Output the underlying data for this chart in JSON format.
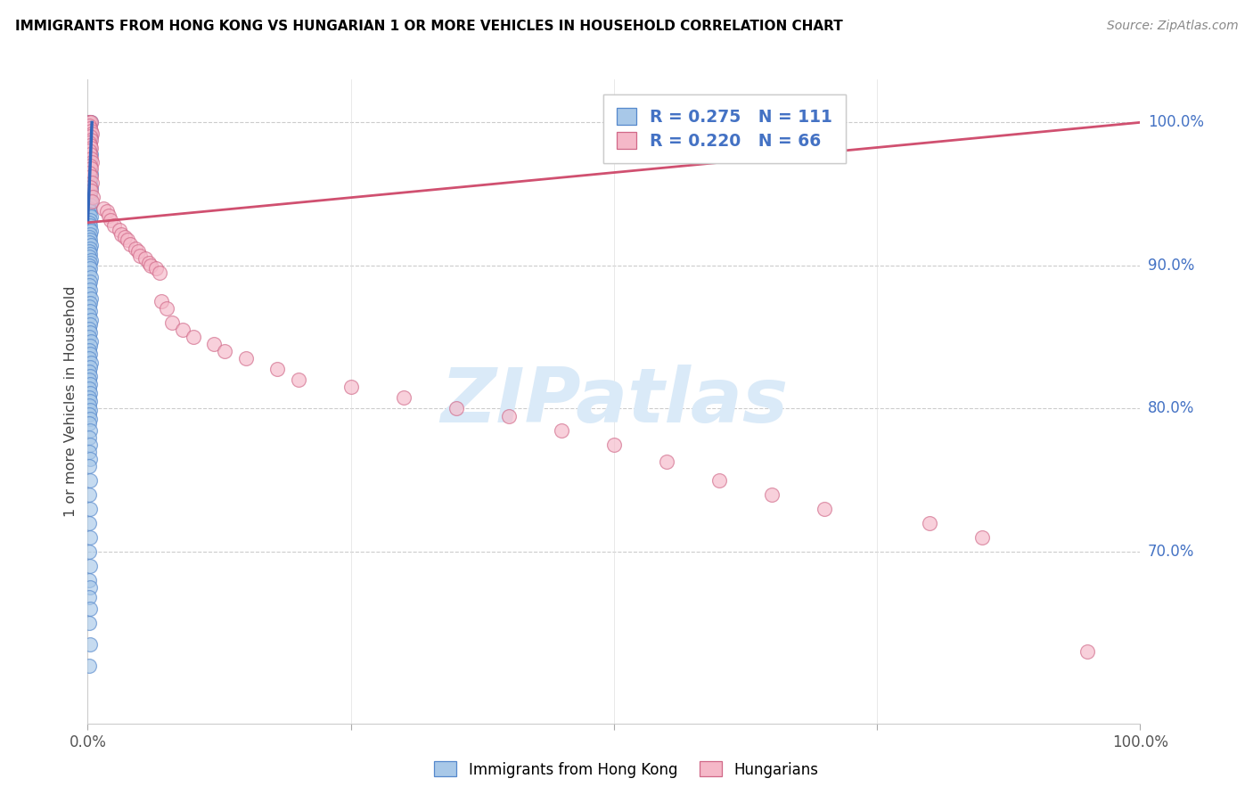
{
  "title": "IMMIGRANTS FROM HONG KONG VS HUNGARIAN 1 OR MORE VEHICLES IN HOUSEHOLD CORRELATION CHART",
  "source": "Source: ZipAtlas.com",
  "ylabel": "1 or more Vehicles in Household",
  "ytick_labels": [
    "100.0%",
    "90.0%",
    "80.0%",
    "70.0%"
  ],
  "ytick_positions": [
    1.0,
    0.9,
    0.8,
    0.7
  ],
  "legend_blue_r": "R = 0.275",
  "legend_blue_n": "N = 111",
  "legend_pink_r": "R = 0.220",
  "legend_pink_n": "N = 66",
  "legend_label_blue": "Immigrants from Hong Kong",
  "legend_label_pink": "Hungarians",
  "blue_fill": "#a8c8e8",
  "blue_edge": "#5588cc",
  "pink_fill": "#f5b8c8",
  "pink_edge": "#d06888",
  "trendline_blue": "#3366bb",
  "trendline_pink": "#d05070",
  "watermark_color": "#daeaf8",
  "xlim": [
    0.0,
    1.0
  ],
  "ylim": [
    0.58,
    1.03
  ],
  "blue_x": [
    0.001,
    0.002,
    0.001,
    0.003,
    0.001,
    0.002,
    0.001,
    0.002,
    0.003,
    0.001,
    0.002,
    0.001,
    0.002,
    0.001,
    0.003,
    0.002,
    0.001,
    0.002,
    0.001,
    0.002,
    0.001,
    0.003,
    0.002,
    0.001,
    0.002,
    0.001,
    0.003,
    0.002,
    0.001,
    0.002,
    0.001,
    0.003,
    0.002,
    0.001,
    0.002,
    0.001,
    0.003,
    0.002,
    0.001,
    0.002,
    0.001,
    0.003,
    0.002,
    0.001,
    0.002,
    0.001,
    0.003,
    0.002,
    0.001,
    0.002,
    0.001,
    0.003,
    0.002,
    0.001,
    0.002,
    0.001,
    0.003,
    0.002,
    0.001,
    0.002,
    0.001,
    0.003,
    0.002,
    0.001,
    0.002,
    0.001,
    0.003,
    0.002,
    0.001,
    0.002,
    0.001,
    0.003,
    0.002,
    0.001,
    0.002,
    0.001,
    0.003,
    0.002,
    0.001,
    0.002,
    0.001,
    0.002,
    0.001,
    0.002,
    0.001,
    0.002,
    0.001,
    0.002,
    0.001,
    0.002,
    0.001,
    0.002,
    0.001,
    0.002,
    0.001,
    0.002,
    0.001,
    0.002,
    0.001,
    0.002,
    0.001,
    0.002,
    0.001,
    0.002,
    0.001,
    0.002,
    0.001,
    0.002,
    0.001,
    0.002,
    0.001
  ],
  "blue_y": [
    1.0,
    1.0,
    1.0,
    1.0,
    0.997,
    0.995,
    0.993,
    0.991,
    0.99,
    0.988,
    0.986,
    0.984,
    0.982,
    0.98,
    0.978,
    0.976,
    0.974,
    0.972,
    0.97,
    0.968,
    0.966,
    0.964,
    0.962,
    0.96,
    0.958,
    0.956,
    0.954,
    0.952,
    0.95,
    0.948,
    0.946,
    0.944,
    0.942,
    0.94,
    0.938,
    0.936,
    0.934,
    0.932,
    0.93,
    0.928,
    0.926,
    0.924,
    0.922,
    0.92,
    0.918,
    0.916,
    0.914,
    0.912,
    0.91,
    0.908,
    0.906,
    0.904,
    0.902,
    0.9,
    0.898,
    0.895,
    0.892,
    0.889,
    0.886,
    0.883,
    0.88,
    0.877,
    0.874,
    0.871,
    0.868,
    0.865,
    0.862,
    0.859,
    0.856,
    0.853,
    0.85,
    0.847,
    0.844,
    0.841,
    0.838,
    0.835,
    0.832,
    0.829,
    0.826,
    0.823,
    0.82,
    0.817,
    0.814,
    0.811,
    0.808,
    0.805,
    0.802,
    0.799,
    0.796,
    0.793,
    0.79,
    0.785,
    0.78,
    0.775,
    0.77,
    0.765,
    0.76,
    0.75,
    0.74,
    0.73,
    0.72,
    0.71,
    0.7,
    0.69,
    0.68,
    0.675,
    0.668,
    0.66,
    0.65,
    0.635,
    0.62
  ],
  "pink_x": [
    0.001,
    0.002,
    0.003,
    0.001,
    0.002,
    0.003,
    0.004,
    0.002,
    0.003,
    0.001,
    0.002,
    0.003,
    0.001,
    0.002,
    0.003,
    0.004,
    0.002,
    0.003,
    0.001,
    0.003,
    0.004,
    0.002,
    0.003,
    0.005,
    0.004,
    0.015,
    0.018,
    0.02,
    0.022,
    0.025,
    0.03,
    0.032,
    0.035,
    0.038,
    0.04,
    0.045,
    0.048,
    0.05,
    0.055,
    0.058,
    0.06,
    0.065,
    0.068,
    0.07,
    0.075,
    0.08,
    0.09,
    0.1,
    0.12,
    0.13,
    0.15,
    0.18,
    0.2,
    0.25,
    0.3,
    0.35,
    0.4,
    0.45,
    0.5,
    0.55,
    0.6,
    0.65,
    0.7,
    0.8,
    0.85,
    0.95
  ],
  "pink_y": [
    1.0,
    1.0,
    1.0,
    0.998,
    0.996,
    0.994,
    0.992,
    0.99,
    0.988,
    0.986,
    0.984,
    0.982,
    0.98,
    0.978,
    0.975,
    0.972,
    0.97,
    0.968,
    0.965,
    0.962,
    0.958,
    0.955,
    0.952,
    0.948,
    0.945,
    0.94,
    0.938,
    0.935,
    0.932,
    0.928,
    0.925,
    0.922,
    0.92,
    0.918,
    0.915,
    0.912,
    0.91,
    0.907,
    0.905,
    0.902,
    0.9,
    0.898,
    0.895,
    0.875,
    0.87,
    0.86,
    0.855,
    0.85,
    0.845,
    0.84,
    0.835,
    0.828,
    0.82,
    0.815,
    0.808,
    0.8,
    0.795,
    0.785,
    0.775,
    0.763,
    0.75,
    0.74,
    0.73,
    0.72,
    0.71,
    0.63
  ],
  "pink_trendline_x": [
    0.0,
    1.0
  ],
  "pink_trendline_y": [
    0.93,
    1.0
  ],
  "blue_trendline_x": [
    0.0,
    0.004
  ],
  "blue_trendline_y": [
    0.93,
    1.0
  ]
}
